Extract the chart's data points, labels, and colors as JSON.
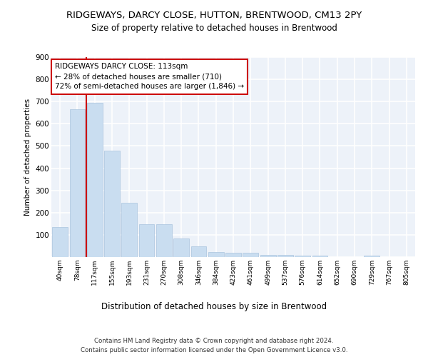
{
  "title1": "RIDGEWAYS, DARCY CLOSE, HUTTON, BRENTWOOD, CM13 2PY",
  "title2": "Size of property relative to detached houses in Brentwood",
  "xlabel": "Distribution of detached houses by size in Brentwood",
  "ylabel": "Number of detached properties",
  "bar_color": "#c9ddf0",
  "bar_edge_color": "#aac4de",
  "annotation_line_color": "#cc0000",
  "annotation_box_color": "#cc0000",
  "annotation_text": "RIDGEWAYS DARCY CLOSE: 113sqm\n← 28% of detached houses are smaller (710)\n72% of semi-detached houses are larger (1,846) →",
  "property_sqm": 113,
  "categories": [
    "40sqm",
    "78sqm",
    "117sqm",
    "155sqm",
    "193sqm",
    "231sqm",
    "270sqm",
    "308sqm",
    "346sqm",
    "384sqm",
    "423sqm",
    "461sqm",
    "499sqm",
    "537sqm",
    "576sqm",
    "614sqm",
    "652sqm",
    "690sqm",
    "729sqm",
    "767sqm",
    "805sqm"
  ],
  "values": [
    135,
    665,
    693,
    480,
    245,
    148,
    148,
    83,
    47,
    22,
    18,
    18,
    10,
    10,
    6,
    6,
    1,
    1,
    8,
    1,
    1
  ],
  "ylim": [
    0,
    900
  ],
  "yticks": [
    0,
    100,
    200,
    300,
    400,
    500,
    600,
    700,
    800,
    900
  ],
  "footer1": "Contains HM Land Registry data © Crown copyright and database right 2024.",
  "footer2": "Contains public sector information licensed under the Open Government Licence v3.0.",
  "background_color": "#edf2f9",
  "grid_color": "#ffffff",
  "fig_bg": "#ffffff"
}
